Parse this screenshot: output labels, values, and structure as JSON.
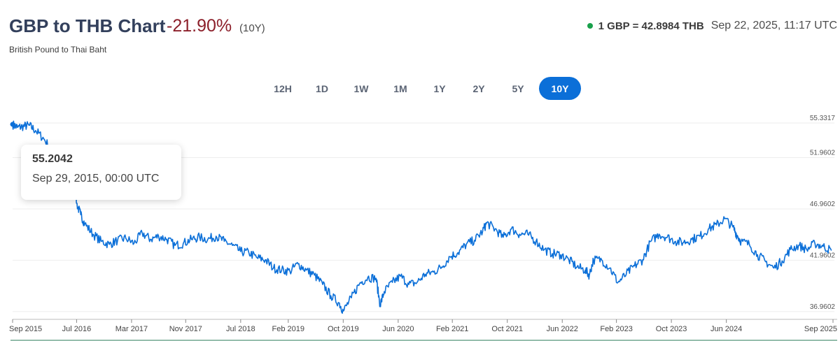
{
  "header": {
    "title": "GBP to THB Chart",
    "change": "-21.90%",
    "period": "(10Y)",
    "subtitle": "British Pound to Thai Baht",
    "rate": "1 GBP = 42.8984 THB",
    "timestamp": "Sep 22, 2025, 11:17 UTC"
  },
  "ranges": [
    {
      "label": "12H",
      "active": false
    },
    {
      "label": "1D",
      "active": false
    },
    {
      "label": "1W",
      "active": false
    },
    {
      "label": "1M",
      "active": false
    },
    {
      "label": "1Y",
      "active": false
    },
    {
      "label": "2Y",
      "active": false
    },
    {
      "label": "5Y",
      "active": false
    },
    {
      "label": "10Y",
      "active": true
    }
  ],
  "tooltip": {
    "value": "55.2042",
    "date": "Sep 29, 2015, 00:00 UTC"
  },
  "colors": {
    "line": "#0b6fd8",
    "negative": "#8c1f2a",
    "live_dot": "#19a04b",
    "active_range": "#0b6fd8"
  },
  "chart_data": {
    "type": "line",
    "title": "GBP to THB Chart",
    "grid": true,
    "y_ticks": [
      "55.3317",
      "51.9602",
      "46.9602",
      "41.9602",
      "36.9602"
    ],
    "y_tick_values": [
      55.3317,
      51.9602,
      46.9602,
      41.9602,
      36.9602
    ],
    "ylim": [
      36.2,
      55.3317
    ],
    "x_ticks": [
      "Sep 2015",
      "Jul 2016",
      "Mar 2017",
      "Nov 2017",
      "Jul 2018",
      "Feb 2019",
      "Oct 2019",
      "Jun 2020",
      "Feb 2021",
      "Oct 2021",
      "Jun 2022",
      "Feb 2023",
      "Oct 2023",
      "Jun 2024",
      "Sep 2025"
    ],
    "x_tick_values": [
      2015.72,
      2016.5,
      2017.17,
      2017.83,
      2018.5,
      2019.08,
      2019.75,
      2020.42,
      2021.08,
      2021.75,
      2022.42,
      2023.08,
      2023.75,
      2024.42,
      2025.72
    ],
    "xlim": [
      2015.72,
      2025.72
    ],
    "series": [
      {
        "x": [
          2015.72,
          2015.78,
          2015.85,
          2015.92,
          2016.0,
          2016.1,
          2016.2,
          2016.3,
          2016.4,
          2016.47,
          2016.5,
          2016.55,
          2016.6,
          2016.7,
          2016.8,
          2016.9,
          2017.0,
          2017.1,
          2017.2,
          2017.3,
          2017.4,
          2017.5,
          2017.6,
          2017.7,
          2017.8,
          2017.9,
          2018.0,
          2018.1,
          2018.2,
          2018.3,
          2018.4,
          2018.5,
          2018.6,
          2018.7,
          2018.8,
          2018.9,
          2019.0,
          2019.1,
          2019.2,
          2019.3,
          2019.4,
          2019.5,
          2019.6,
          2019.7,
          2019.75,
          2019.85,
          2019.95,
          2020.05,
          2020.15,
          2020.2,
          2020.25,
          2020.35,
          2020.45,
          2020.55,
          2020.65,
          2020.75,
          2020.85,
          2020.95,
          2021.05,
          2021.15,
          2021.25,
          2021.35,
          2021.45,
          2021.5,
          2021.6,
          2021.7,
          2021.8,
          2021.9,
          2022.0,
          2022.1,
          2022.2,
          2022.3,
          2022.4,
          2022.5,
          2022.6,
          2022.7,
          2022.75,
          2022.8,
          2022.9,
          2023.0,
          2023.1,
          2023.2,
          2023.3,
          2023.4,
          2023.5,
          2023.6,
          2023.7,
          2023.8,
          2023.9,
          2024.0,
          2024.1,
          2024.2,
          2024.3,
          2024.4,
          2024.5,
          2024.55,
          2024.6,
          2024.7,
          2024.8,
          2024.9,
          2025.0,
          2025.1,
          2025.2,
          2025.3,
          2025.4,
          2025.5,
          2025.6,
          2025.7
        ],
        "y": [
          55.2,
          54.9,
          55.0,
          55.1,
          54.6,
          53.8,
          52.6,
          51.5,
          51.0,
          50.8,
          47.5,
          46.4,
          45.5,
          44.5,
          43.8,
          43.5,
          43.9,
          44.1,
          43.6,
          44.6,
          44.0,
          44.3,
          44.0,
          43.4,
          43.6,
          44.0,
          44.2,
          44.0,
          44.3,
          43.8,
          43.4,
          42.8,
          42.7,
          42.2,
          42.0,
          41.2,
          41.0,
          40.9,
          41.6,
          41.0,
          40.5,
          39.6,
          38.5,
          37.8,
          37.0,
          38.3,
          39.7,
          40.3,
          40.2,
          37.6,
          38.9,
          39.8,
          40.4,
          39.6,
          39.8,
          40.6,
          40.8,
          41.3,
          42.3,
          42.7,
          43.5,
          43.9,
          44.8,
          45.6,
          45.0,
          44.2,
          45.0,
          44.5,
          44.5,
          43.8,
          43.0,
          42.6,
          42.5,
          42.0,
          41.3,
          41.0,
          40.5,
          42.0,
          42.0,
          41.2,
          39.8,
          40.6,
          41.4,
          42.0,
          43.8,
          44.5,
          44.2,
          43.8,
          43.7,
          44.0,
          44.3,
          45.0,
          45.4,
          46.0,
          45.2,
          44.4,
          43.8,
          43.5,
          42.5,
          41.8,
          41.2,
          41.9,
          43.0,
          43.4,
          43.0,
          43.6,
          43.3,
          42.9
        ]
      }
    ]
  }
}
